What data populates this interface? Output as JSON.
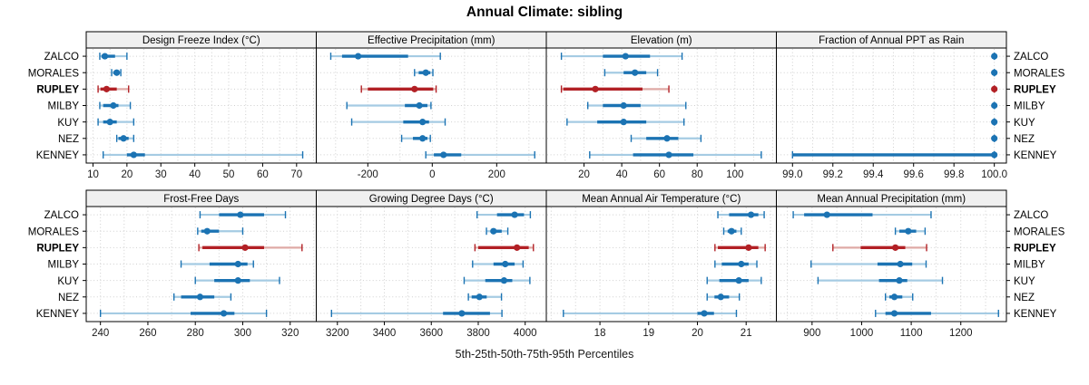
{
  "chart_data": {
    "type": "dotplot",
    "title": "Annual Climate: sibling",
    "xlabel": "5th-25th-50th-75th-95th Percentiles",
    "percentiles": [
      "5th",
      "25th",
      "50th",
      "75th",
      "95th"
    ],
    "stations": [
      "ZALCO",
      "MORALES",
      "RUPLEY",
      "MILBY",
      "KUY",
      "NEZ",
      "KENNEY"
    ],
    "highlight_station": "RUPLEY",
    "legend_position": "none",
    "grid": "dotted",
    "colors": {
      "blue": "#1b73b3",
      "blue_light": "#a5cbe3",
      "red": "#b22025",
      "red_light": "#dfaaa6",
      "grid": "#cfcfcf",
      "strip_bg": "#f0f0f0",
      "border": "#000000"
    },
    "panels": [
      {
        "title": "Design Freeze Index (°C)",
        "xlim": [
          8,
          75.8
        ],
        "tick_values": [
          10,
          20,
          30,
          40,
          50,
          60,
          70
        ],
        "tick_labels": [
          "10",
          "20",
          "30",
          "40",
          "50",
          "60",
          "70"
        ],
        "grid_step": 5,
        "values": {
          "ZALCO": [
            12,
            12.5,
            13.5,
            16.5,
            20
          ],
          "MORALES": [
            15.5,
            16,
            17,
            17.5,
            18.2
          ],
          "RUPLEY": [
            11.5,
            12.2,
            14,
            17,
            20.5
          ],
          "MILBY": [
            12,
            13,
            16,
            17.5,
            21
          ],
          "KUY": [
            11.5,
            13,
            15,
            17,
            22
          ],
          "NEZ": [
            17,
            17.5,
            19,
            20.5,
            22
          ],
          "KENNEY": [
            13,
            20,
            22,
            25.3,
            71.8
          ]
        }
      },
      {
        "title": "Effective Precipitation (mm)",
        "xlim": [
          -360,
          354
        ],
        "tick_values": [
          -200,
          0,
          200
        ],
        "tick_labels": [
          "-200",
          "0",
          "200"
        ],
        "grid_step": 100,
        "values": {
          "ZALCO": [
            -315,
            -280,
            -230,
            -75,
            25
          ],
          "MORALES": [
            -55,
            -42,
            -20,
            -6,
            2
          ],
          "RUPLEY": [
            -220,
            -200,
            -55,
            3,
            12
          ],
          "MILBY": [
            -265,
            -85,
            -40,
            -15,
            -4
          ],
          "KUY": [
            -250,
            -90,
            -30,
            -10,
            40
          ],
          "NEZ": [
            -95,
            -60,
            -30,
            -15,
            -6
          ],
          "KENNEY": [
            -20,
            5,
            35,
            90,
            318
          ]
        }
      },
      {
        "title": "Elevation (m)",
        "xlim": [
          0,
          122
        ],
        "tick_values": [
          20,
          40,
          60,
          80,
          100
        ],
        "tick_labels": [
          "20",
          "40",
          "60",
          "80",
          "100"
        ],
        "grid_step": 10,
        "values": {
          "ZALCO": [
            8,
            30,
            42,
            55,
            72
          ],
          "MORALES": [
            31,
            41,
            47,
            53,
            59
          ],
          "RUPLEY": [
            8,
            9,
            26,
            51,
            65
          ],
          "MILBY": [
            22,
            30,
            41,
            50,
            74
          ],
          "KUY": [
            11,
            27,
            41,
            53,
            73
          ],
          "NEZ": [
            45,
            53,
            64,
            70,
            82
          ],
          "KENNEY": [
            23,
            46,
            65,
            78,
            114
          ]
        }
      },
      {
        "title": "Fraction of Annual PPT as Rain",
        "xlim": [
          98.92,
          100.06
        ],
        "tick_values": [
          99.0,
          99.2,
          99.4,
          99.6,
          99.8,
          100.0
        ],
        "tick_labels": [
          "99.0",
          "99.2",
          "99.4",
          "99.6",
          "99.8",
          "100.0"
        ],
        "grid_step": 0.1,
        "values": {
          "ZALCO": [
            100,
            100,
            100,
            100,
            100
          ],
          "MORALES": [
            100,
            100,
            100,
            100,
            100
          ],
          "RUPLEY": [
            100,
            100,
            100,
            100,
            100
          ],
          "MILBY": [
            100,
            100,
            100,
            100,
            100
          ],
          "KUY": [
            100,
            100,
            100,
            100,
            100
          ],
          "NEZ": [
            100,
            100,
            100,
            100,
            100
          ],
          "KENNEY": [
            99.0,
            99.0,
            100,
            100,
            100
          ]
        }
      },
      {
        "title": "Frost-Free Days",
        "xlim": [
          234,
          331
        ],
        "tick_values": [
          240,
          260,
          280,
          300,
          320
        ],
        "tick_labels": [
          "240",
          "260",
          "280",
          "300",
          "320"
        ],
        "grid_step": 10,
        "values": {
          "ZALCO": [
            282,
            290,
            299,
            309,
            318
          ],
          "MORALES": [
            281,
            282.5,
            285,
            290,
            300
          ],
          "RUPLEY": [
            281.5,
            283,
            301,
            309,
            325
          ],
          "MILBY": [
            274,
            286,
            298,
            302,
            304.5
          ],
          "KUY": [
            280,
            288,
            298,
            303,
            315.5
          ],
          "NEZ": [
            271,
            274,
            282,
            288,
            295
          ],
          "KENNEY": [
            240,
            278,
            292,
            296.5,
            310
          ]
        }
      },
      {
        "title": "Growing Degree Days (°C)",
        "xlim": [
          3110,
          4090
        ],
        "tick_values": [
          3200,
          3400,
          3600,
          3800,
          4000
        ],
        "tick_labels": [
          "3200",
          "3400",
          "3600",
          "3800",
          "4000"
        ],
        "grid_step": 100,
        "values": {
          "ZALCO": [
            3795,
            3880,
            3955,
            3995,
            4022
          ],
          "MORALES": [
            3835,
            3852,
            3865,
            3900,
            3926
          ],
          "RUPLEY": [
            3786,
            3800,
            3965,
            4015,
            4035
          ],
          "MILBY": [
            3776,
            3865,
            3915,
            3955,
            3991
          ],
          "KUY": [
            3740,
            3830,
            3910,
            3945,
            4020
          ],
          "NEZ": [
            3758,
            3772,
            3805,
            3836,
            3899
          ],
          "KENNEY": [
            3175,
            3650,
            3730,
            3850,
            3901
          ]
        }
      },
      {
        "title": "Mean Annual Air Temperature (°C)",
        "xlim": [
          16.9,
          21.62
        ],
        "tick_values": [
          18,
          19,
          20,
          21
        ],
        "tick_labels": [
          "18",
          "19",
          "20",
          "21"
        ],
        "grid_step": 0.5,
        "values": {
          "ZALCO": [
            20.42,
            20.65,
            21.1,
            21.25,
            21.37
          ],
          "MORALES": [
            20.54,
            20.62,
            20.7,
            20.8,
            20.9
          ],
          "RUPLEY": [
            20.36,
            20.42,
            21.05,
            21.25,
            21.39
          ],
          "MILBY": [
            20.36,
            20.5,
            20.9,
            21.05,
            21.22
          ],
          "KUY": [
            20.2,
            20.45,
            20.85,
            21.05,
            21.31
          ],
          "NEZ": [
            20.2,
            20.35,
            20.48,
            20.65,
            20.86
          ],
          "KENNEY": [
            17.25,
            20.0,
            20.14,
            20.34,
            20.8
          ]
        }
      },
      {
        "title": "Mean Annual Precipitation (mm)",
        "xlim": [
          828,
          1292
        ],
        "tick_values": [
          900,
          1000,
          1100,
          1200
        ],
        "tick_labels": [
          "900",
          "1000",
          "1100",
          "1200"
        ],
        "grid_step": 50,
        "values": {
          "ZALCO": [
            862,
            884,
            930,
            1022,
            1140
          ],
          "MORALES": [
            1068,
            1076,
            1094,
            1110,
            1128
          ],
          "RUPLEY": [
            942,
            998,
            1068,
            1088,
            1131
          ],
          "MILBY": [
            898,
            1032,
            1078,
            1102,
            1130
          ],
          "KUY": [
            912,
            1035,
            1076,
            1092,
            1163
          ],
          "NEZ": [
            1048,
            1056,
            1066,
            1082,
            1103
          ],
          "KENNEY": [
            1028,
            1048,
            1066,
            1140,
            1276
          ]
        }
      }
    ]
  }
}
